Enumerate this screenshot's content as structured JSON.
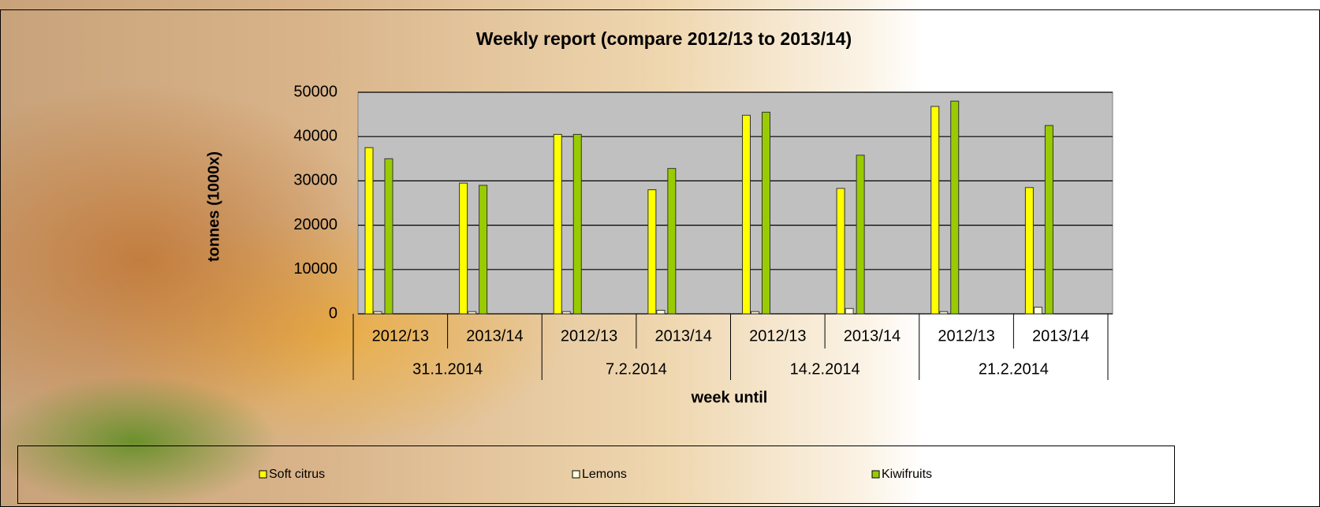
{
  "chart_data": {
    "type": "bar",
    "title": "Weekly report (compare 2012/13 to 2013/14)",
    "y_label": "tonnes (1000x)",
    "x_label": "week until",
    "categories": [
      "2012/13",
      "2013/14",
      "2012/13",
      "2013/14",
      "2012/13",
      "2013/14",
      "2012/13",
      "2013/14"
    ],
    "groups": [
      "31.1.2014",
      "7.2.2014",
      "14.2.2014",
      "21.2.2014"
    ],
    "series": [
      {
        "name": "Soft citrus",
        "color": "#ffff00",
        "values": [
          37500,
          29500,
          40500,
          28000,
          44800,
          28300,
          46800,
          28500
        ]
      },
      {
        "name": "Lemons",
        "color": "#ffffe0",
        "values": [
          500,
          500,
          500,
          800,
          500,
          1200,
          500,
          1500
        ]
      },
      {
        "name": "Kiwifruits",
        "color": "#99cc00",
        "values": [
          35000,
          29000,
          40500,
          32800,
          45500,
          35800,
          48000,
          42500
        ]
      }
    ],
    "ylim": [
      0,
      50000
    ],
    "yticks": [
      0,
      10000,
      20000,
      30000,
      40000,
      50000
    ],
    "grid": true,
    "plot_background": "#c0c0c0",
    "legend": "bottom"
  }
}
